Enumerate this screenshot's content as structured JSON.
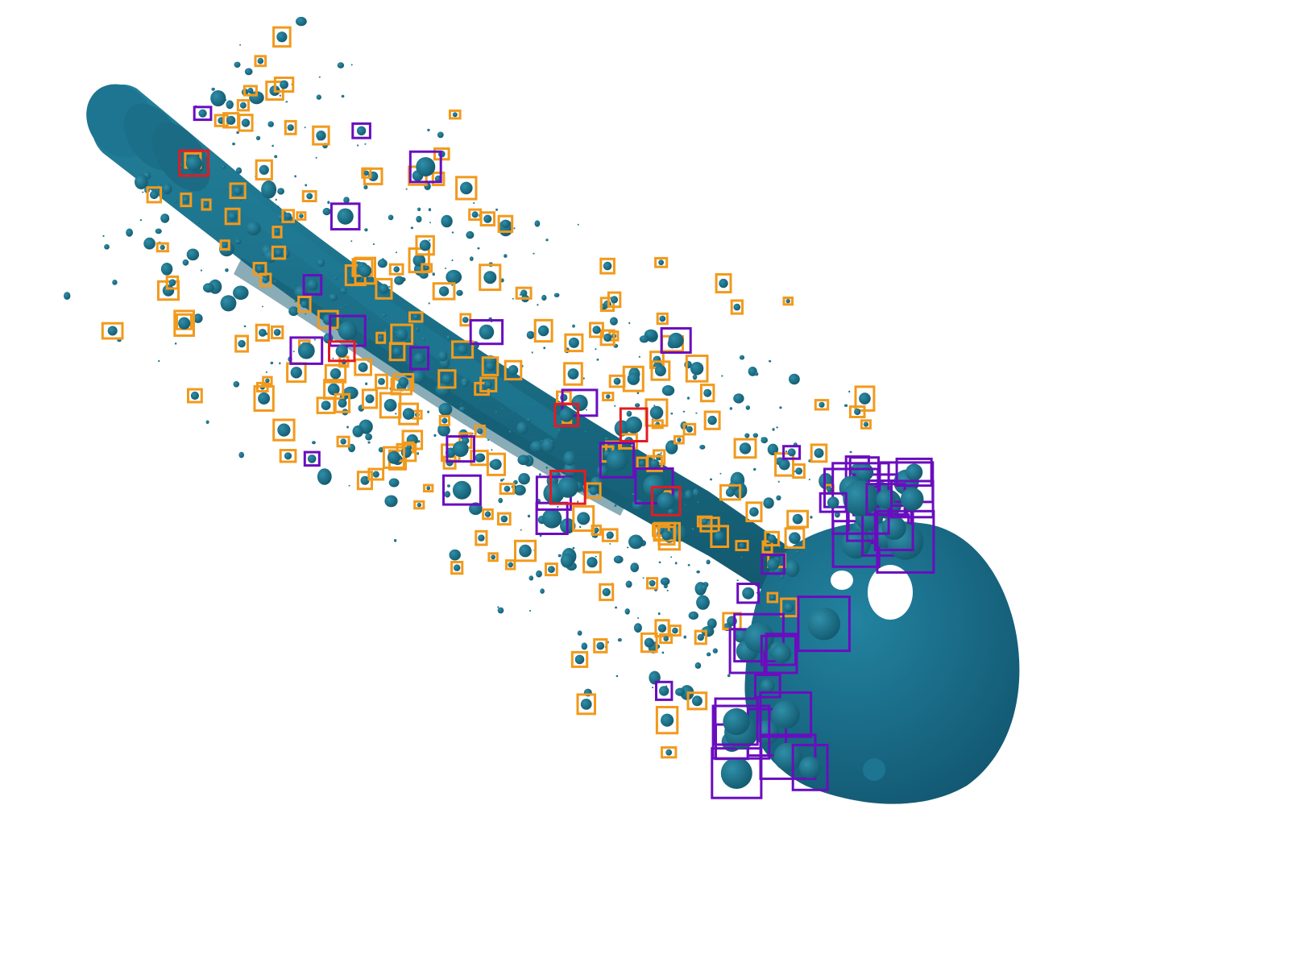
{
  "scene": {
    "background": "#ffffff",
    "fluid_color": "#1b6f88",
    "fluid_shade": "#145a70",
    "fluid_highlight": "#2c8aa4"
  },
  "legend": {
    "droplet_box_color": "#f29a1c",
    "ligament_box_color": "#6a0dbf",
    "highlight_box_color": "#e31b23"
  },
  "box_counts": {
    "orange": 200,
    "purple": 55,
    "red": 6
  }
}
